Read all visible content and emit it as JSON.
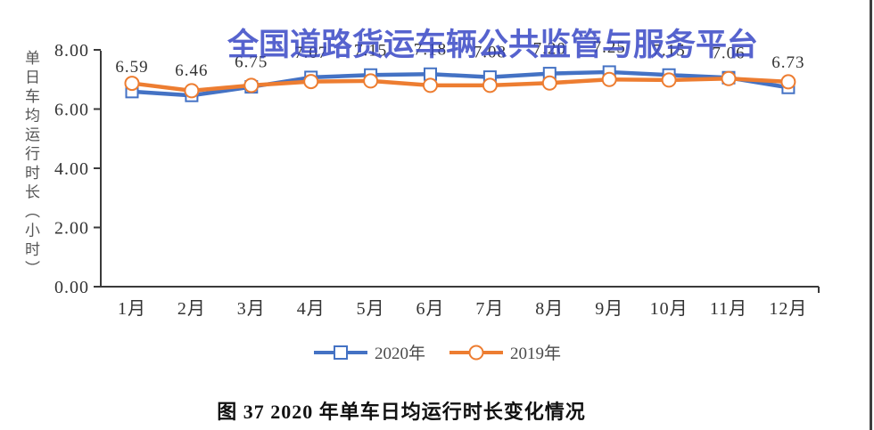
{
  "watermark": {
    "text": "全国道路货运车辆公共监管与服务平台"
  },
  "caption": {
    "text": "图 37 2020 年单车日均运行时长变化情况"
  },
  "colors": {
    "series_2020": "#4472C4",
    "series_2019": "#ED7D31",
    "watermark_blue": "#3848C5",
    "axis": "#3a3a3a",
    "text": "#333333"
  },
  "chart_data": {
    "type": "line",
    "title": "",
    "ylabel": "单日车均运行时长（小时）",
    "xlabel": "",
    "ylim": [
      0,
      8
    ],
    "grid": false,
    "legend_position": "bottom",
    "categories": [
      "1月",
      "2月",
      "3月",
      "4月",
      "5月",
      "6月",
      "7月",
      "8月",
      "9月",
      "10月",
      "11月",
      "12月"
    ],
    "yticks": [
      {
        "value": 8,
        "label": "8.00"
      },
      {
        "value": 6,
        "label": "6.00"
      },
      {
        "value": 4,
        "label": "4.00"
      },
      {
        "value": 2,
        "label": "2.00"
      },
      {
        "value": 0,
        "label": "0.00"
      }
    ],
    "series": [
      {
        "name": "2020年",
        "color": "#4472C4",
        "marker": "square",
        "values": [
          6.59,
          6.46,
          6.75,
          7.07,
          7.15,
          7.18,
          7.08,
          7.2,
          7.25,
          7.15,
          7.06,
          6.73
        ],
        "point_labels": [
          "6.59",
          "6.46",
          "6.75",
          "7.07",
          "7.15",
          "7.18",
          "7.08",
          "7.20",
          "7.25",
          "7.15",
          "7.06",
          "6.73"
        ]
      },
      {
        "name": "2019年",
        "color": "#ED7D31",
        "marker": "circle",
        "values": [
          6.87,
          6.62,
          6.8,
          6.93,
          6.95,
          6.8,
          6.8,
          6.88,
          7.0,
          6.98,
          7.03,
          6.92
        ]
      }
    ]
  }
}
